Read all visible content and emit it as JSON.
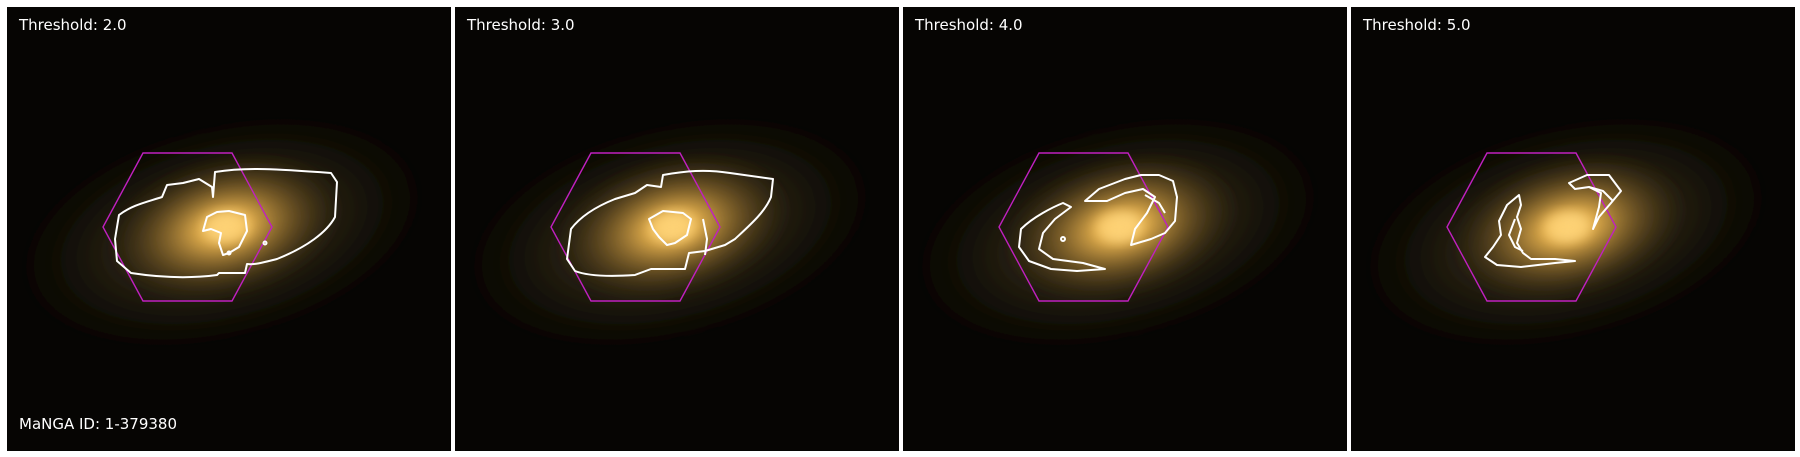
{
  "figure": {
    "manga_id_text": "MaNGA ID: 1-379380",
    "panels": [
      {
        "threshold_label": "Threshold: 2.0"
      },
      {
        "threshold_label": "Threshold: 3.0"
      },
      {
        "threshold_label": "Threshold: 4.0"
      },
      {
        "threshold_label": "Threshold: 5.0"
      }
    ],
    "colors": {
      "background": "#060503",
      "galaxy_core": "#ffc860",
      "galaxy_halo": "#8a7040",
      "hexagon": "#c020c0",
      "contour": "#ffffff"
    }
  }
}
